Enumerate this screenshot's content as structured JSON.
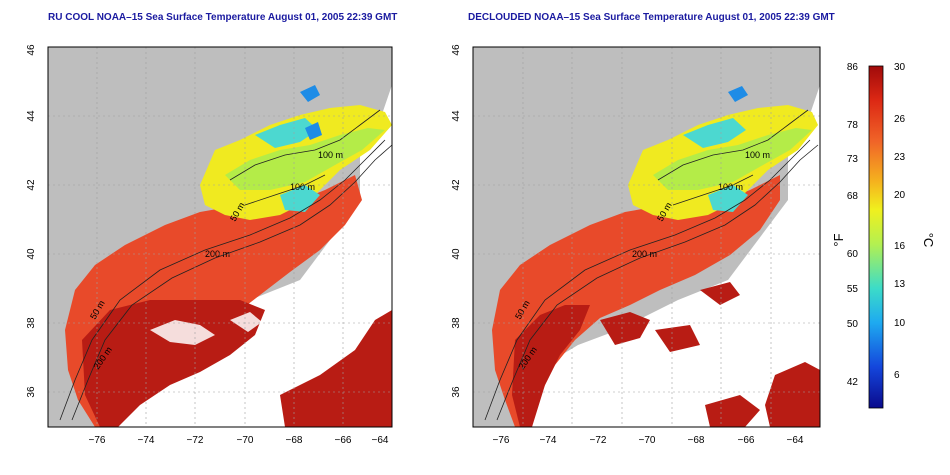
{
  "panels": [
    {
      "title": "RU COOL NOAA–15 Sea Surface Temperature August 01, 2005 22:39 GMT",
      "variant": "raw"
    },
    {
      "title": "DECLOUDED NOAA–15 Sea Surface Temperature August 01, 2005 22:39 GMT",
      "variant": "declouded"
    }
  ],
  "axes": {
    "lon_ticks": [
      "−76",
      "−74",
      "−72",
      "−70",
      "−68",
      "−66",
      "−64"
    ],
    "lat_ticks": [
      "36",
      "38",
      "40",
      "42",
      "44",
      "46"
    ],
    "lon_range": [
      -77,
      -63
    ],
    "lat_range": [
      35,
      46
    ]
  },
  "contour_labels": [
    "100 m",
    "100 m",
    "50 m",
    "200 m",
    "50 m",
    "200 m"
  ],
  "colorbar": {
    "fahrenheit_unit": "°F",
    "celsius_unit": "°C",
    "fahrenheit_ticks": [
      "86",
      "78",
      "73",
      "68",
      "60",
      "55",
      "50",
      "42"
    ],
    "celsius_ticks": [
      "30",
      "26",
      "23",
      "20",
      "16",
      "13",
      "10",
      "6"
    ],
    "colors": [
      "#0a0a8c",
      "#1446dc",
      "#1eaaf0",
      "#3cdcc8",
      "#b4f050",
      "#f0f01e",
      "#f5b41e",
      "#f06428",
      "#dc2814",
      "#a00a0a"
    ]
  },
  "colors": {
    "land": "#bebebe",
    "no_data": "#ffffff",
    "title": "#1a1aa0",
    "grid": "#a0a0a0"
  }
}
